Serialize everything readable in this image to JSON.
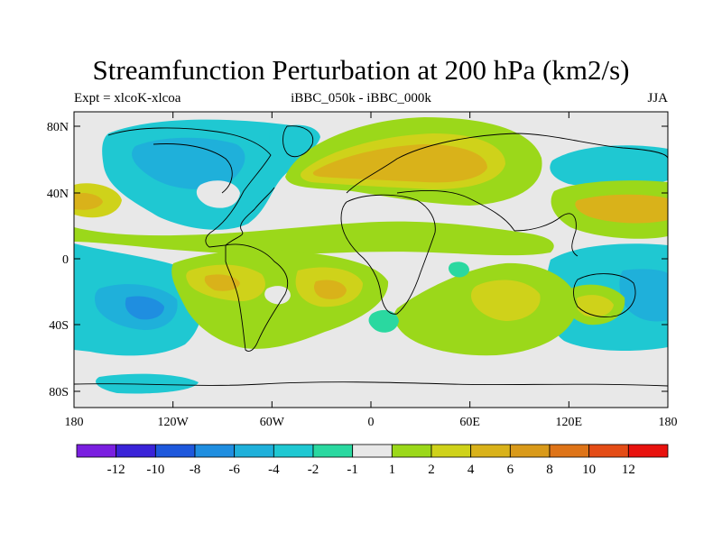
{
  "title": "Streamfunction Perturbation at 200 hPa (km2/s)",
  "subtitle_left": "Expt = xlcoK-xlcoa",
  "subtitle_center": "iBBC_050k - iBBC_000k",
  "subtitle_right": "JJA",
  "lat_ticks": [
    "80N",
    "40N",
    "0",
    "40S",
    "80S"
  ],
  "lon_ticks": [
    "180",
    "120W",
    "60W",
    "0",
    "60E",
    "120E",
    "180"
  ],
  "colorbar": {
    "labels": [
      "-12",
      "-10",
      "-8",
      "-6",
      "-4",
      "-2",
      "-1",
      "1",
      "2",
      "4",
      "6",
      "8",
      "10",
      "12"
    ],
    "colors": [
      "#7a1fe0",
      "#3a23d8",
      "#1e58dc",
      "#1f8ee0",
      "#1fb0da",
      "#1fc8d2",
      "#2ad8a0",
      "#e8e8e8",
      "#9bd81a",
      "#cfd21a",
      "#d9b21a",
      "#d99a1a",
      "#de7418",
      "#e44c16",
      "#e8120e"
    ]
  },
  "colors": {
    "background": "#e8e8e8",
    "coast": "#000000"
  }
}
